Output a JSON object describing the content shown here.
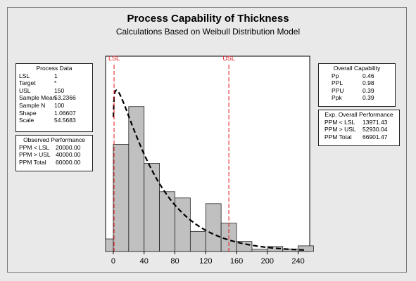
{
  "header": {
    "title": "Process Capability of Thickness",
    "subtitle": "Calculations Based on Weibull Distribution Model"
  },
  "process_data": {
    "heading": "Process Data",
    "rows": [
      {
        "label": "LSL",
        "value": "1"
      },
      {
        "label": "Target",
        "value": "*"
      },
      {
        "label": "USL",
        "value": "150"
      },
      {
        "label": "Sample Mean",
        "value": "53.2366"
      },
      {
        "label": "Sample N",
        "value": "100"
      },
      {
        "label": "Shape",
        "value": "1.06607"
      },
      {
        "label": "Scale",
        "value": "54.5683"
      }
    ]
  },
  "observed_performance": {
    "heading": "Observed Performance",
    "rows": [
      {
        "label": "PPM < LSL",
        "value": "20000.00"
      },
      {
        "label": "PPM > USL",
        "value": "40000.00"
      },
      {
        "label": "PPM Total",
        "value": "60000.00"
      }
    ]
  },
  "overall_capability": {
    "heading": "Overall Capability",
    "rows": [
      {
        "label": "Pp",
        "value": "0.46"
      },
      {
        "label": "PPL",
        "value": "0.98"
      },
      {
        "label": "PPU",
        "value": "0.39"
      },
      {
        "label": "Ppk",
        "value": "0.39"
      }
    ]
  },
  "exp_overall_performance": {
    "heading": "Exp. Overall Performance",
    "rows": [
      {
        "label": "PPM < LSL",
        "value": "13971.43"
      },
      {
        "label": "PPM > USL",
        "value": "52930.04"
      },
      {
        "label": "PPM Total",
        "value": "66901.47"
      }
    ]
  },
  "chart_data": {
    "type": "bar",
    "title": "Process Capability of Thickness",
    "subtitle": "Calculations Based on Weibull Distribution Model",
    "bins": [
      {
        "start": -10,
        "end": 0,
        "count": 2
      },
      {
        "start": 0,
        "end": 20,
        "count": 17
      },
      {
        "start": 20,
        "end": 40,
        "count": 23
      },
      {
        "start": 40,
        "end": 60,
        "count": 14
      },
      {
        "start": 60,
        "end": 80,
        "count": 9.5
      },
      {
        "start": 80,
        "end": 100,
        "count": 8.5
      },
      {
        "start": 100,
        "end": 120,
        "count": 3.2
      },
      {
        "start": 120,
        "end": 140,
        "count": 7.6
      },
      {
        "start": 140,
        "end": 160,
        "count": 4.5
      },
      {
        "start": 160,
        "end": 180,
        "count": 1.6
      },
      {
        "start": 180,
        "end": 200,
        "count": 0.35
      },
      {
        "start": 200,
        "end": 220,
        "count": 0.8
      },
      {
        "start": 220,
        "end": 240,
        "count": 0.4
      },
      {
        "start": 240,
        "end": 260,
        "count": 0.9
      }
    ],
    "xlim": [
      -10,
      255
    ],
    "ylim": [
      0,
      31
    ],
    "xticks": [
      "0",
      "40",
      "80",
      "120",
      "160",
      "200",
      "240"
    ],
    "spec_lines": [
      {
        "label": "LSL",
        "value": 1
      },
      {
        "label": "USL",
        "value": 150
      }
    ],
    "fit": {
      "distribution": "Weibull",
      "shape": 1.06607,
      "scale": 54.5683
    },
    "colors": {
      "bar": "#c0c0c0",
      "bar_edge": "#222222",
      "spec": "#e8111a",
      "fit": "#000000"
    }
  }
}
